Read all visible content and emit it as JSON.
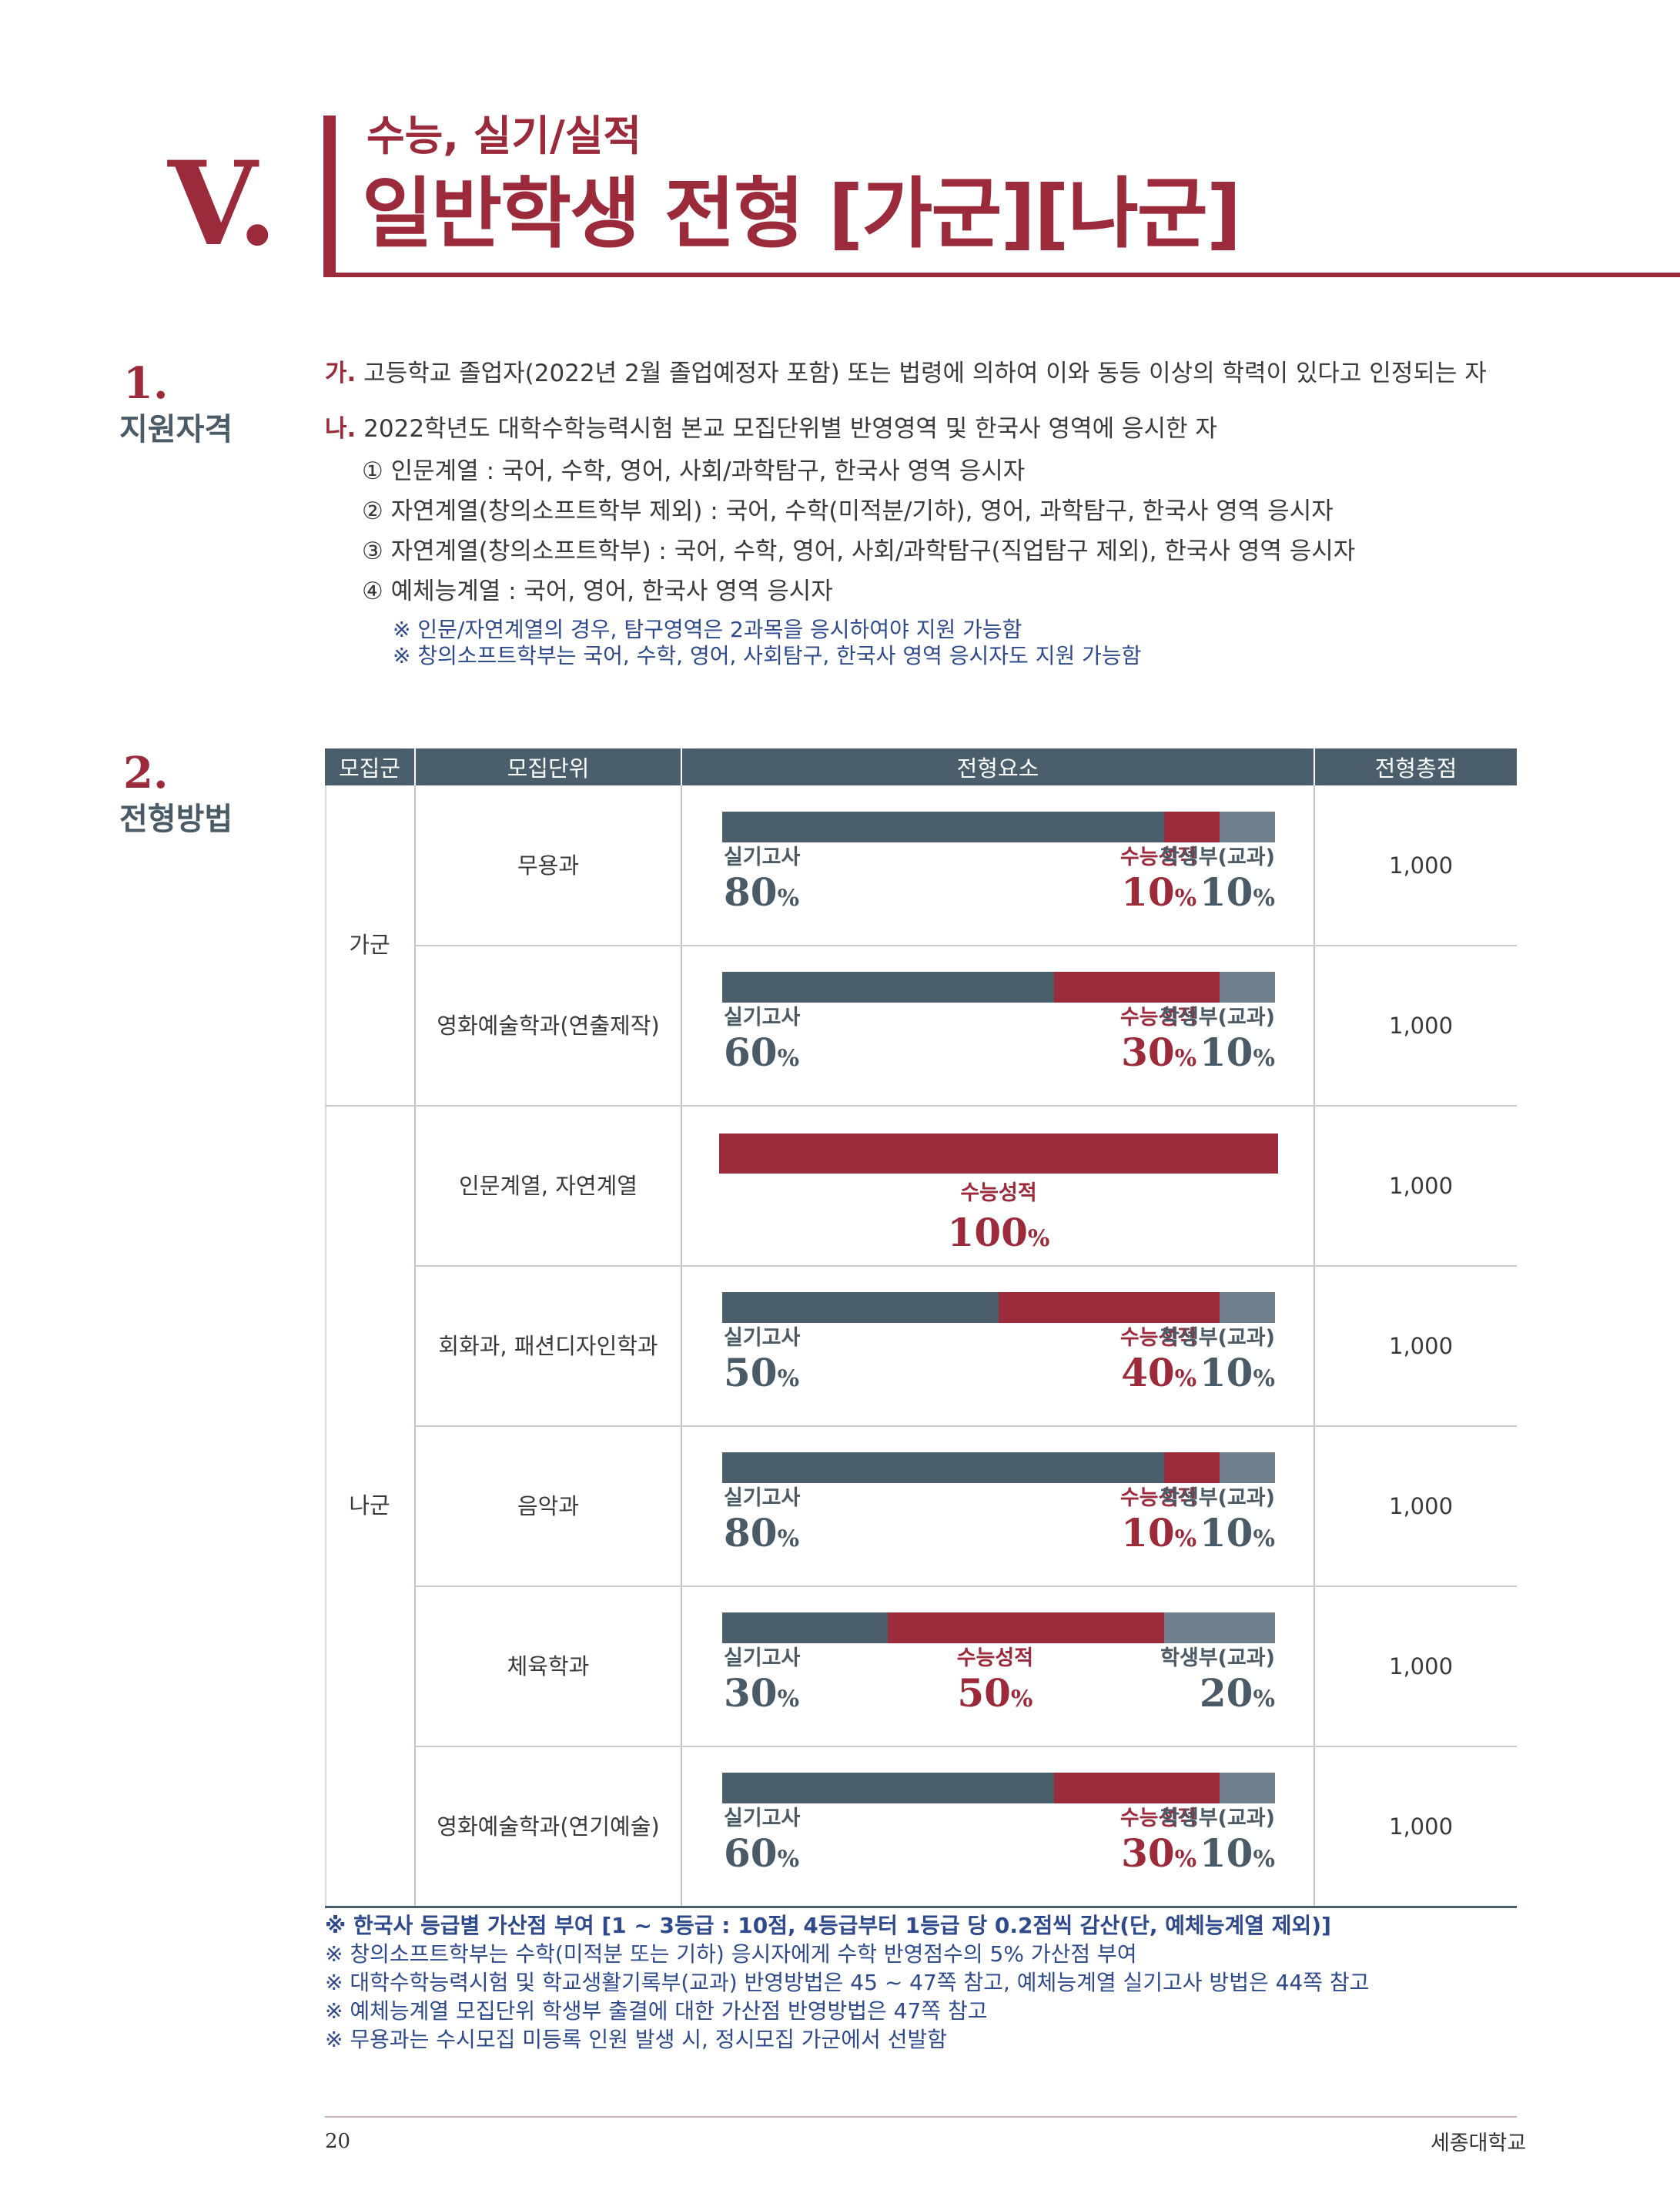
{
  "header": {
    "section_numeral": "V.",
    "subtitle": "수능, 실기/실적",
    "title": "일반학생 전형 [가군][나군]"
  },
  "section1": {
    "number": "1.",
    "label": "지원자격",
    "lines": [
      {
        "marker": "가.",
        "text": " 고등학교 졸업자(2022년 2월 졸업예정자 포함) 또는 법령에 의하여 이와 동등 이상의 학력이 있다고 인정되는 자"
      },
      {
        "marker": "나.",
        "text": " 2022학년도 대학수학능력시험 본교 모집단위별 반영영역 및 한국사 영역에 응시한 자"
      }
    ],
    "sublines": [
      "① 인문계열 : 국어, 수학, 영어, 사회/과학탐구, 한국사 영역 응시자",
      "② 자연계열(창의소프트학부 제외) : 국어, 수학(미적분/기하), 영어, 과학탐구, 한국사 영역 응시자",
      "③ 자연계열(창의소프트학부) : 국어, 수학, 영어, 사회/과학탐구(직업탐구 제외), 한국사 영역 응시자",
      "④ 예체능계열 : 국어, 영어, 한국사 영역 응시자"
    ],
    "notes": [
      "※ 인문/자연계열의 경우, 탐구영역은 2과목을 응시하여야 지원 가능함",
      "※ 창의소프트학부는 국어, 수학, 영어, 사회탐구, 한국사 영역 응시자도 지원 가능함"
    ]
  },
  "section2": {
    "number": "2.",
    "label": "전형방법"
  },
  "table": {
    "headers": [
      "모집군",
      "모집단위",
      "전형요소",
      "전형총점"
    ],
    "groups": [
      "가군",
      "나군"
    ],
    "rows": [
      {
        "unit": "무용과",
        "total": "1,000",
        "components": [
          {
            "label": "실기고사",
            "value": 80,
            "pct_text": "80",
            "color": "#4a5e6c"
          },
          {
            "label": "수능성적",
            "value": 10,
            "pct_text": "10",
            "color": "#9b2b3b"
          },
          {
            "label": "학생부(교과)",
            "value": 10,
            "pct_text": "10",
            "color": "#6f7f8c"
          }
        ]
      },
      {
        "unit": "영화예술학과(연출제작)",
        "total": "1,000",
        "components": [
          {
            "label": "실기고사",
            "value": 60,
            "pct_text": "60",
            "color": "#4a5e6c"
          },
          {
            "label": "수능성적",
            "value": 30,
            "pct_text": "30",
            "color": "#9b2b3b"
          },
          {
            "label": "학생부(교과)",
            "value": 10,
            "pct_text": "10",
            "color": "#6f7f8c"
          }
        ]
      },
      {
        "unit": "인문계열, 자연계열",
        "total": "1,000",
        "components": [
          {
            "label": "수능성적",
            "value": 100,
            "pct_text": "100",
            "color": "#9b2b3b"
          }
        ]
      },
      {
        "unit": "회화과, 패션디자인학과",
        "total": "1,000",
        "components": [
          {
            "label": "실기고사",
            "value": 50,
            "pct_text": "50",
            "color": "#4a5e6c"
          },
          {
            "label": "수능성적",
            "value": 40,
            "pct_text": "40",
            "color": "#9b2b3b"
          },
          {
            "label": "학생부(교과)",
            "value": 10,
            "pct_text": "10",
            "color": "#6f7f8c"
          }
        ]
      },
      {
        "unit": "음악과",
        "total": "1,000",
        "components": [
          {
            "label": "실기고사",
            "value": 80,
            "pct_text": "80",
            "color": "#4a5e6c"
          },
          {
            "label": "수능성적",
            "value": 10,
            "pct_text": "10",
            "color": "#9b2b3b"
          },
          {
            "label": "학생부(교과)",
            "value": 10,
            "pct_text": "10",
            "color": "#6f7f8c"
          }
        ]
      },
      {
        "unit": "체육학과",
        "total": "1,000",
        "components": [
          {
            "label": "실기고사",
            "value": 30,
            "pct_text": "30",
            "color": "#4a5e6c"
          },
          {
            "label": "수능성적",
            "value": 50,
            "pct_text": "50",
            "color": "#9b2b3b"
          },
          {
            "label": "학생부(교과)",
            "value": 20,
            "pct_text": "20",
            "color": "#6f7f8c"
          }
        ]
      },
      {
        "unit": "영화예술학과(연기예술)",
        "total": "1,000",
        "components": [
          {
            "label": "실기고사",
            "value": 60,
            "pct_text": "60",
            "color": "#4a5e6c"
          },
          {
            "label": "수능성적",
            "value": 30,
            "pct_text": "30",
            "color": "#9b2b3b"
          },
          {
            "label": "학생부(교과)",
            "value": 10,
            "pct_text": "10",
            "color": "#6f7f8c"
          }
        ]
      }
    ],
    "pct_suffix": "%"
  },
  "footnotes": [
    "※ 한국사 등급별 가산점 부여 [1 ~ 3등급 : 10점, 4등급부터 1등급 당 0.2점씩 감산(단, 예체능계열 제외)]",
    "※ 창의소프트학부는 수학(미적분 또는 기하) 응시자에게 수학 반영점수의 5% 가산점 부여",
    "※ 대학수학능력시험 및 학교생활기록부(교과) 반영방법은 45 ~ 47쪽 참고, 예체능계열 실기고사 방법은 44쪽 참고",
    "※ 예체능계열 모집단위 학생부 출결에 대한 가산점 반영방법은 47쪽 참고",
    "※ 무용과는 수시모집 미등록 인원 발생 시, 정시모집 가군에서 선발함"
  ],
  "footer": {
    "page_number": "20",
    "school_name": "세종대학교"
  },
  "colors": {
    "accent": "#9b2b3b",
    "slate": "#4a5e6c",
    "light_slate": "#6f7f8c",
    "note_blue": "#2e4a8c"
  }
}
